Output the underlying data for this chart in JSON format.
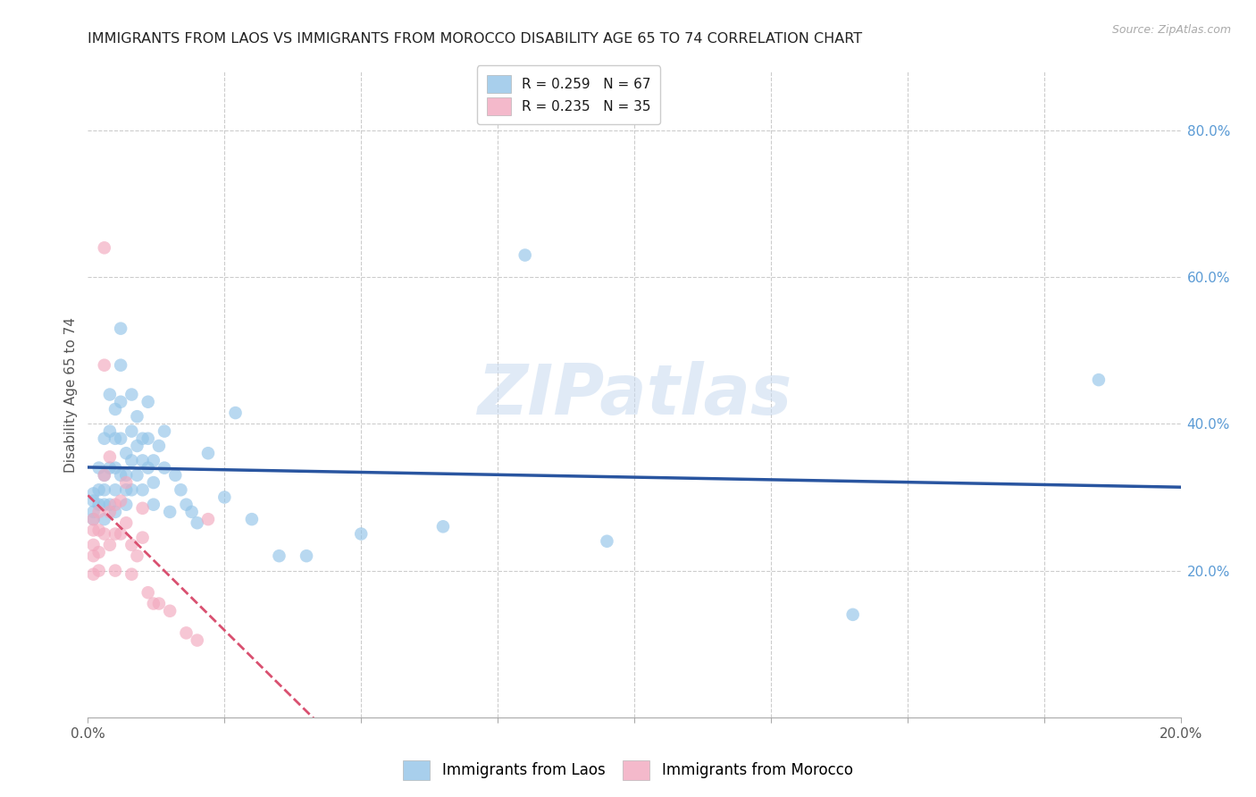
{
  "title": "IMMIGRANTS FROM LAOS VS IMMIGRANTS FROM MOROCCO DISABILITY AGE 65 TO 74 CORRELATION CHART",
  "source": "Source: ZipAtlas.com",
  "ylabel": "Disability Age 65 to 74",
  "xlim": [
    0.0,
    0.2
  ],
  "ylim": [
    0.0,
    0.88
  ],
  "bottom_legend": [
    "Immigrants from Laos",
    "Immigrants from Morocco"
  ],
  "blue_color": "#93c4e8",
  "pink_color": "#f2a8be",
  "blue_line_color": "#2955a0",
  "pink_line_color": "#d95070",
  "watermark": "ZIPatlas",
  "grid_color": "#cccccc",
  "laos_R": 0.259,
  "morocco_R": 0.235,
  "laos_N": 67,
  "morocco_N": 35,
  "laos_x": [
    0.001,
    0.001,
    0.001,
    0.001,
    0.002,
    0.002,
    0.002,
    0.003,
    0.003,
    0.003,
    0.003,
    0.003,
    0.004,
    0.004,
    0.004,
    0.004,
    0.005,
    0.005,
    0.005,
    0.005,
    0.005,
    0.006,
    0.006,
    0.006,
    0.006,
    0.006,
    0.007,
    0.007,
    0.007,
    0.007,
    0.008,
    0.008,
    0.008,
    0.008,
    0.009,
    0.009,
    0.009,
    0.01,
    0.01,
    0.01,
    0.011,
    0.011,
    0.011,
    0.012,
    0.012,
    0.012,
    0.013,
    0.014,
    0.014,
    0.015,
    0.016,
    0.017,
    0.018,
    0.019,
    0.02,
    0.022,
    0.025,
    0.027,
    0.03,
    0.035,
    0.04,
    0.05,
    0.065,
    0.08,
    0.095,
    0.14,
    0.185
  ],
  "laos_y": [
    0.305,
    0.295,
    0.28,
    0.27,
    0.34,
    0.31,
    0.29,
    0.38,
    0.33,
    0.31,
    0.29,
    0.27,
    0.44,
    0.39,
    0.34,
    0.29,
    0.42,
    0.38,
    0.34,
    0.31,
    0.28,
    0.53,
    0.48,
    0.43,
    0.38,
    0.33,
    0.36,
    0.33,
    0.31,
    0.29,
    0.44,
    0.39,
    0.35,
    0.31,
    0.41,
    0.37,
    0.33,
    0.38,
    0.35,
    0.31,
    0.43,
    0.38,
    0.34,
    0.35,
    0.32,
    0.29,
    0.37,
    0.39,
    0.34,
    0.28,
    0.33,
    0.31,
    0.29,
    0.28,
    0.265,
    0.36,
    0.3,
    0.415,
    0.27,
    0.22,
    0.22,
    0.25,
    0.26,
    0.63,
    0.24,
    0.14,
    0.46
  ],
  "morocco_x": [
    0.001,
    0.001,
    0.001,
    0.001,
    0.001,
    0.002,
    0.002,
    0.002,
    0.002,
    0.003,
    0.003,
    0.003,
    0.003,
    0.004,
    0.004,
    0.004,
    0.005,
    0.005,
    0.005,
    0.006,
    0.006,
    0.007,
    0.007,
    0.008,
    0.008,
    0.009,
    0.01,
    0.01,
    0.011,
    0.012,
    0.013,
    0.015,
    0.018,
    0.02,
    0.022
  ],
  "morocco_y": [
    0.27,
    0.255,
    0.235,
    0.22,
    0.195,
    0.28,
    0.255,
    0.225,
    0.2,
    0.64,
    0.48,
    0.33,
    0.25,
    0.355,
    0.28,
    0.235,
    0.29,
    0.25,
    0.2,
    0.295,
    0.25,
    0.32,
    0.265,
    0.235,
    0.195,
    0.22,
    0.285,
    0.245,
    0.17,
    0.155,
    0.155,
    0.145,
    0.115,
    0.105,
    0.27
  ]
}
